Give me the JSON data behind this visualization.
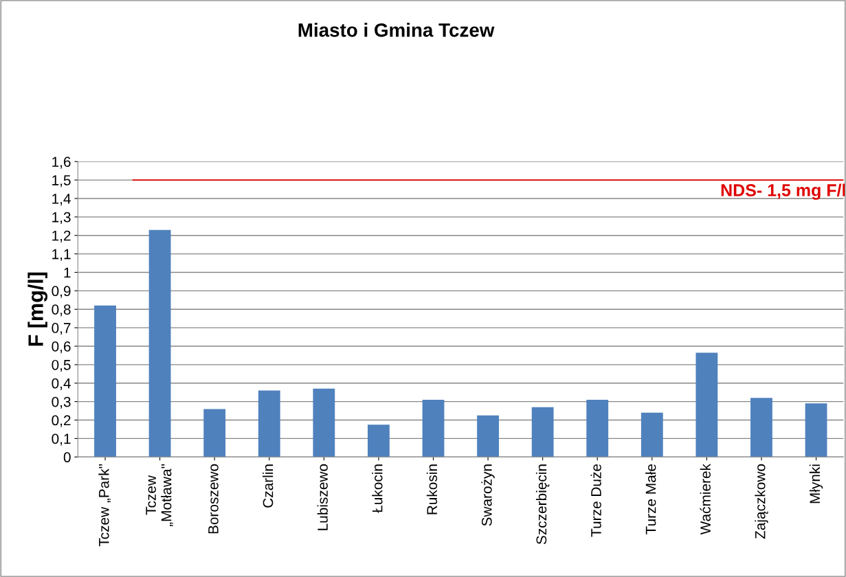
{
  "chart_data": {
    "type": "bar",
    "title": "Miasto i Gmina Tczew",
    "ylabel": "F [mg/l]",
    "categories": [
      "Tczew „Park\"",
      "Tczew\n„Motława\"",
      "Boroszewo",
      "Czarlin",
      "Lubiszewo",
      "Łukocin",
      "Rukosin",
      "Swarożyn",
      "Szczerbięcin",
      "Turze Duże",
      "Turze Małe",
      "Waćmierek",
      "Zajączkowo",
      "Młynki"
    ],
    "values": [
      0.82,
      1.23,
      0.26,
      0.36,
      0.37,
      0.175,
      0.31,
      0.225,
      0.27,
      0.31,
      0.24,
      0.565,
      0.32,
      0.29
    ],
    "color": "#4f81bd",
    "ylim": [
      0,
      1.6
    ],
    "yticks": [
      {
        "value": 0,
        "label": "0"
      },
      {
        "value": 0.1,
        "label": "0,1"
      },
      {
        "value": 0.2,
        "label": "0,2"
      },
      {
        "value": 0.3,
        "label": "0,3"
      },
      {
        "value": 0.4,
        "label": "0,4"
      },
      {
        "value": 0.5,
        "label": "0,5"
      },
      {
        "value": 0.6,
        "label": "0,6"
      },
      {
        "value": 0.7,
        "label": "0,7"
      },
      {
        "value": 0.8,
        "label": "0,8"
      },
      {
        "value": 0.9,
        "label": "0,9"
      },
      {
        "value": 1,
        "label": "1"
      },
      {
        "value": 1.1,
        "label": "1,1"
      },
      {
        "value": 1.2,
        "label": "1,2"
      },
      {
        "value": 1.3,
        "label": "1,3"
      },
      {
        "value": 1.4,
        "label": "1,4"
      },
      {
        "value": 1.5,
        "label": "1,5"
      },
      {
        "value": 1.6,
        "label": "1,6"
      }
    ],
    "grid": "y",
    "ref_lines": [
      {
        "axis": "y",
        "value": 1.5,
        "label": "NDS- 1,5 mg F/l",
        "color": "#e00000"
      }
    ]
  }
}
